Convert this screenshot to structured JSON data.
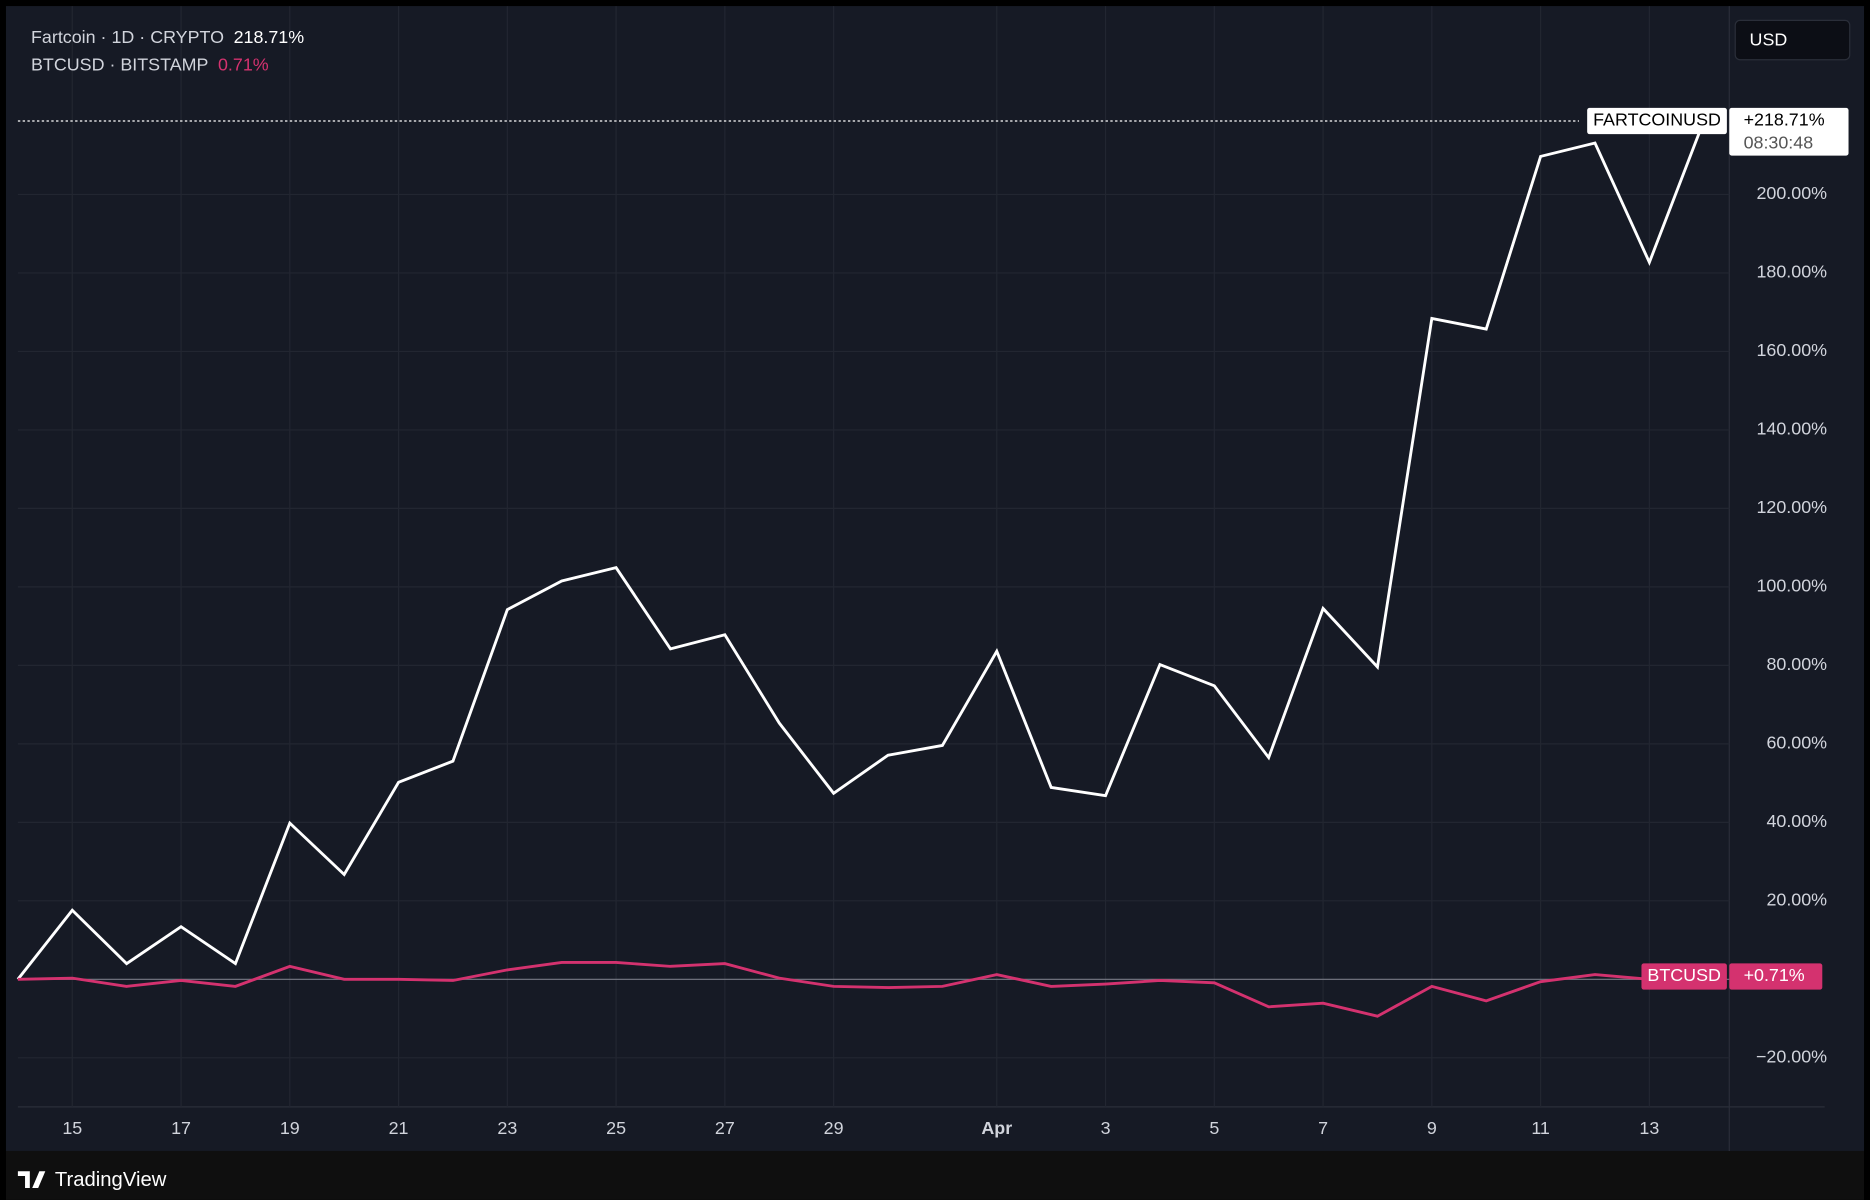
{
  "chart_data": {
    "type": "line",
    "currency": "USD",
    "brand": "TradingView",
    "countdown": "08:30:48",
    "categories": [
      null,
      "15",
      null,
      "17",
      null,
      "19",
      null,
      "21",
      null,
      "23",
      null,
      "25",
      null,
      "27",
      null,
      "29",
      null,
      null,
      "Apr",
      null,
      "3",
      null,
      "5",
      null,
      "7",
      null,
      "9",
      null,
      "11",
      null,
      "13",
      null
    ],
    "series": [
      {
        "name": "Fartcoin · 1D · CRYPTO",
        "legend_value": "218.71%",
        "ticker": "FARTCOINUSD",
        "price_label": "+218.71%",
        "color": "#ffffff",
        "values": [
          0,
          17.6,
          4,
          13.4,
          4,
          39.8,
          26.7,
          50.2,
          55.6,
          94.2,
          101.5,
          104.9,
          84.2,
          87.8,
          65.3,
          47.4,
          57.1,
          59.6,
          83.6,
          48.9,
          46.8,
          80.2,
          74.8,
          56.5,
          94.5,
          79.6,
          168.4,
          165.7,
          209.7,
          213.1,
          182.7,
          218.71
        ]
      },
      {
        "name": "BTCUSD · BITSTAMP",
        "legend_value": "0.71%",
        "ticker": "BTCUSD",
        "price_label": "+0.71%",
        "color": "#d4326f",
        "values": [
          0,
          0.3,
          -1.8,
          -0.3,
          -1.8,
          3.3,
          0,
          0,
          -0.3,
          2.4,
          4.3,
          4.3,
          3.3,
          4,
          0.3,
          -1.8,
          -2.1,
          -1.8,
          1.2,
          -1.8,
          -1.2,
          -0.3,
          -0.9,
          -7,
          -6.1,
          -9.4,
          -1.8,
          -5.5,
          -0.6,
          1.2,
          0,
          0.71
        ]
      }
    ],
    "baseline": 0,
    "ylim": [
      -32.5,
      248
    ],
    "yticks": [
      {
        "value": -20,
        "label": "−20.00%"
      },
      {
        "value": 20,
        "label": "20.00%"
      },
      {
        "value": 40,
        "label": "40.00%"
      },
      {
        "value": 60,
        "label": "60.00%"
      },
      {
        "value": 80,
        "label": "80.00%"
      },
      {
        "value": 100,
        "label": "100.00%"
      },
      {
        "value": 120,
        "label": "120.00%"
      },
      {
        "value": 140,
        "label": "140.00%"
      },
      {
        "value": 160,
        "label": "160.00%"
      },
      {
        "value": 180,
        "label": "180.00%"
      },
      {
        "value": 200,
        "label": "200.00%"
      }
    ],
    "grid": true
  }
}
